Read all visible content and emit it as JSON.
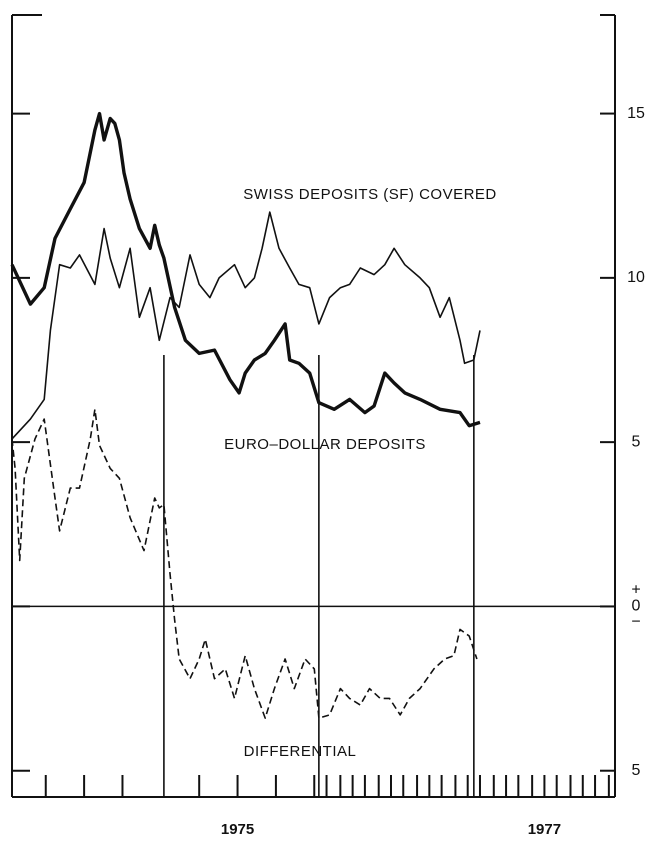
{
  "chart_data": {
    "type": "line",
    "xlim": [
      1973.53,
      1977.46
    ],
    "ylim": [
      -5.8,
      18
    ],
    "xticks": [
      {
        "value": 1975,
        "label": "1975"
      },
      {
        "value": 1977,
        "label": "1977"
      }
    ],
    "xminor_ticks": [
      1973.75,
      1974.0,
      1974.25,
      1974.75,
      1975.0,
      1975.25,
      1975.5,
      1975.58,
      1975.67,
      1975.75,
      1975.83,
      1975.92,
      1976.0,
      1976.08,
      1976.17,
      1976.25,
      1976.33,
      1976.42,
      1976.5,
      1976.58,
      1976.67,
      1976.75,
      1976.83,
      1976.92,
      1977.0,
      1977.08,
      1977.17,
      1977.25,
      1977.33,
      1977.42
    ],
    "yticks": [
      15,
      10,
      5,
      0,
      {
        "value": -5,
        "label": "5"
      }
    ],
    "annotations": [
      "+",
      "−"
    ],
    "vlines": [
      1974.52,
      1975.53,
      1976.54
    ],
    "series": [
      {
        "name": "SWISS DEPOSITS (SF) COVERED",
        "color": "#111111",
        "line_style": "thin",
        "x": [
          1973.53,
          1973.65,
          1973.74,
          1973.78,
          1973.84,
          1973.91,
          1973.97,
          1974.07,
          1974.13,
          1974.17,
          1974.23,
          1974.3,
          1974.36,
          1974.43,
          1974.49,
          1974.56,
          1974.62,
          1974.69,
          1974.75,
          1974.82,
          1974.88,
          1974.98,
          1975.05,
          1975.11,
          1975.16,
          1975.21,
          1975.27,
          1975.34,
          1975.4,
          1975.47,
          1975.53,
          1975.6,
          1975.67,
          1975.73,
          1975.8,
          1975.89,
          1975.96,
          1976.02,
          1976.09,
          1976.19,
          1976.25,
          1976.32,
          1976.38,
          1976.45,
          1976.48,
          1976.54,
          1976.58
        ],
        "values": [
          5.1,
          5.7,
          6.3,
          8.4,
          10.4,
          10.3,
          10.7,
          9.8,
          11.5,
          10.6,
          9.7,
          10.9,
          8.8,
          9.7,
          8.1,
          9.4,
          9.1,
          10.7,
          9.8,
          9.4,
          10.0,
          10.4,
          9.7,
          10.0,
          10.9,
          12.0,
          10.9,
          10.3,
          9.8,
          9.7,
          8.6,
          9.4,
          9.7,
          9.8,
          10.3,
          10.1,
          10.4,
          10.9,
          10.4,
          10.0,
          9.7,
          8.8,
          9.4,
          8.1,
          7.4,
          7.5,
          8.4
        ]
      },
      {
        "name": "EURO–DOLLAR DEPOSITS",
        "color": "#111111",
        "line_style": "thick",
        "x": [
          1973.53,
          1973.65,
          1973.74,
          1973.81,
          1973.91,
          1974.0,
          1974.07,
          1974.1,
          1974.13,
          1974.17,
          1974.2,
          1974.23,
          1974.26,
          1974.3,
          1974.36,
          1974.43,
          1974.46,
          1974.49,
          1974.52,
          1974.59,
          1974.66,
          1974.75,
          1974.85,
          1974.95,
          1975.01,
          1975.05,
          1975.11,
          1975.18,
          1975.24,
          1975.31,
          1975.34,
          1975.4,
          1975.47,
          1975.53,
          1975.63,
          1975.73,
          1975.83,
          1975.89,
          1975.96,
          1976.02,
          1976.09,
          1976.19,
          1976.32,
          1976.45,
          1976.51,
          1976.58
        ],
        "values": [
          10.4,
          9.2,
          9.7,
          11.2,
          12.1,
          12.9,
          14.5,
          15.0,
          14.2,
          14.85,
          14.7,
          14.2,
          13.2,
          12.4,
          11.5,
          10.9,
          11.6,
          11.0,
          10.6,
          9.1,
          8.1,
          7.7,
          7.8,
          6.9,
          6.5,
          7.1,
          7.5,
          7.7,
          8.1,
          8.6,
          7.5,
          7.4,
          7.1,
          6.2,
          6.0,
          6.3,
          5.9,
          6.1,
          7.1,
          6.8,
          6.5,
          6.3,
          6.0,
          5.9,
          5.5,
          5.6
        ]
      },
      {
        "name": "DIFFERENTIAL",
        "color": "#111111",
        "line_style": "dashed",
        "x": [
          1973.53,
          1973.55,
          1973.58,
          1973.61,
          1973.68,
          1973.74,
          1973.81,
          1973.84,
          1973.91,
          1973.97,
          1974.04,
          1974.07,
          1974.1,
          1974.17,
          1974.23,
          1974.3,
          1974.39,
          1974.46,
          1974.49,
          1974.52,
          1974.56,
          1974.59,
          1974.62,
          1974.69,
          1974.75,
          1974.79,
          1974.85,
          1974.92,
          1974.98,
          1975.05,
          1975.11,
          1975.18,
          1975.24,
          1975.31,
          1975.37,
          1975.44,
          1975.5,
          1975.53,
          1975.6,
          1975.67,
          1975.73,
          1975.8,
          1975.86,
          1975.93,
          1975.99,
          1976.06,
          1976.12,
          1976.19,
          1976.28,
          1976.35,
          1976.41,
          1976.45,
          1976.51,
          1976.56
        ],
        "values": [
          5.1,
          4.2,
          1.4,
          3.9,
          5.1,
          5.7,
          3.3,
          2.3,
          3.6,
          3.6,
          5.1,
          6.0,
          4.9,
          4.2,
          3.9,
          2.7,
          1.7,
          3.3,
          3.0,
          3.1,
          1.0,
          -0.4,
          -1.6,
          -2.2,
          -1.6,
          -1.0,
          -2.2,
          -1.9,
          -2.8,
          -1.5,
          -2.5,
          -3.4,
          -2.5,
          -1.6,
          -2.5,
          -1.6,
          -1.9,
          -3.4,
          -3.3,
          -2.5,
          -2.8,
          -3.0,
          -2.5,
          -2.8,
          -2.8,
          -3.3,
          -2.8,
          -2.5,
          -1.9,
          -1.6,
          -1.5,
          -0.7,
          -0.9,
          -1.6
        ]
      }
    ]
  }
}
